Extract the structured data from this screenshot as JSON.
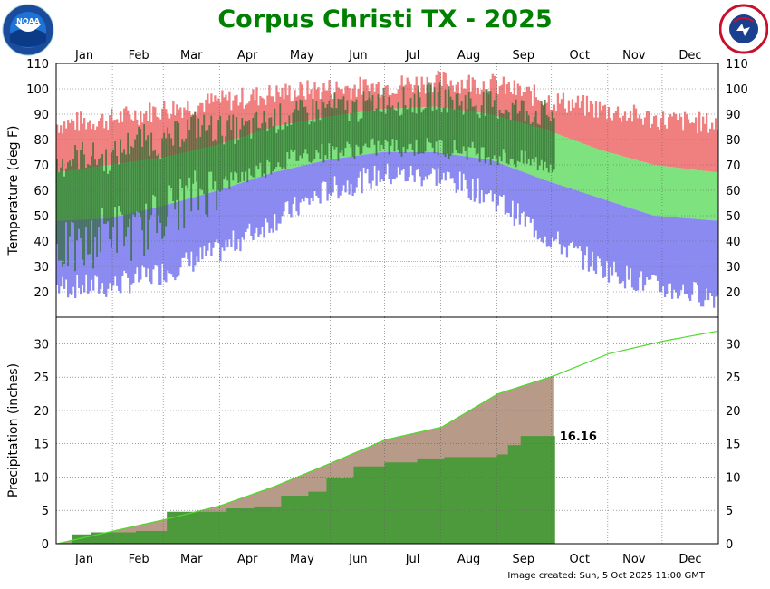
{
  "title": "Corpus Christi TX - 2025",
  "footer": "Image created: Sun, 5 Oct 2025 11:00 GMT",
  "logos": {
    "left_text": "NOAA",
    "right_text": "NATIONAL WEATHER SERVICE"
  },
  "colors": {
    "record_band": "#f08080",
    "normal_band": "#7ee27e",
    "low_band": "#8a8af0",
    "actual_bar": "#2f6a2f",
    "precip_normal_fill": "#b89a88",
    "precip_actual_fill": "#4c9a3c",
    "precip_normal_line": "#4fdb2a",
    "title": "#008000"
  },
  "chart_data": [
    {
      "type": "bar",
      "id": "temperature",
      "ylabel": "Temperature (deg F)",
      "ylim": [
        10,
        110
      ],
      "yticks": [
        20,
        30,
        40,
        50,
        60,
        70,
        80,
        90,
        100,
        110
      ],
      "months": [
        "Jan",
        "Feb",
        "Mar",
        "Apr",
        "May",
        "Jun",
        "Jul",
        "Aug",
        "Sep",
        "Oct",
        "Nov",
        "Dec"
      ],
      "freeze_line": 32,
      "normal_high": {
        "x": [
          1,
          30,
          60,
          90,
          120,
          150,
          180,
          210,
          240,
          270,
          300,
          330,
          365
        ],
        "y": [
          67,
          70,
          73,
          78,
          85,
          89,
          92,
          93,
          90,
          84,
          76,
          70,
          67
        ]
      },
      "normal_low": {
        "x": [
          1,
          30,
          60,
          90,
          120,
          150,
          180,
          210,
          240,
          270,
          300,
          330,
          365
        ],
        "y": [
          48,
          49,
          54,
          60,
          67,
          72,
          75,
          75,
          72,
          64,
          57,
          50,
          48
        ]
      },
      "record_high": {
        "x": [
          1,
          30,
          60,
          90,
          120,
          150,
          180,
          210,
          240,
          270,
          300,
          330,
          365
        ],
        "y": [
          86,
          88,
          92,
          95,
          98,
          100,
          101,
          103,
          102,
          96,
          92,
          88,
          86
        ]
      },
      "record_low": {
        "x": [
          1,
          30,
          60,
          90,
          120,
          150,
          180,
          210,
          240,
          270,
          300,
          330,
          365
        ],
        "y": [
          22,
          22,
          28,
          36,
          48,
          60,
          66,
          66,
          58,
          42,
          30,
          22,
          18
        ]
      },
      "observed_through_day": 275,
      "series": [
        {
          "name": "Observed High",
          "x": [
            1,
            15,
            30,
            45,
            60,
            75,
            90,
            105,
            120,
            135,
            150,
            165,
            180,
            195,
            210,
            225,
            240,
            255,
            270
          ],
          "y": [
            70,
            74,
            72,
            81,
            78,
            86,
            84,
            84,
            88,
            90,
            93,
            92,
            96,
            95,
            97,
            95,
            94,
            92,
            90
          ]
        },
        {
          "name": "Observed Low",
          "x": [
            1,
            15,
            30,
            45,
            60,
            75,
            90,
            105,
            120,
            135,
            150,
            165,
            180,
            195,
            210,
            225,
            240,
            255,
            270
          ],
          "y": [
            38,
            36,
            46,
            42,
            52,
            57,
            62,
            66,
            70,
            74,
            75,
            76,
            77,
            77,
            77,
            76,
            74,
            72,
            70
          ]
        }
      ]
    },
    {
      "type": "area",
      "id": "precipitation",
      "ylabel": "Precipitation (inches)",
      "ylim": [
        0,
        34
      ],
      "yticks": [
        0,
        5,
        10,
        15,
        20,
        25,
        30
      ],
      "months": [
        "Jan",
        "Feb",
        "Mar",
        "Apr",
        "May",
        "Jun",
        "Jul",
        "Aug",
        "Sep",
        "Oct",
        "Nov",
        "Dec"
      ],
      "ytd_label": "16.16",
      "series": [
        {
          "name": "Normal",
          "x": [
            1,
            32,
            60,
            91,
            121,
            152,
            182,
            213,
            244,
            275,
            305,
            335,
            365
          ],
          "y": [
            0,
            1.9,
            3.6,
            5.7,
            8.6,
            12.1,
            15.6,
            17.5,
            22.5,
            25.2,
            28.5,
            30.4,
            31.9
          ]
        },
        {
          "name": "Observed",
          "x": [
            1,
            10,
            20,
            45,
            60,
            62,
            70,
            95,
            110,
            125,
            140,
            150,
            165,
            182,
            200,
            215,
            244,
            250,
            257,
            275
          ],
          "y": [
            0,
            1.4,
            1.7,
            1.9,
            1.9,
            4.8,
            4.8,
            5.3,
            5.6,
            7.2,
            7.8,
            9.9,
            11.6,
            12.2,
            12.8,
            13.0,
            13.4,
            14.8,
            16.16,
            16.16
          ]
        }
      ]
    }
  ]
}
